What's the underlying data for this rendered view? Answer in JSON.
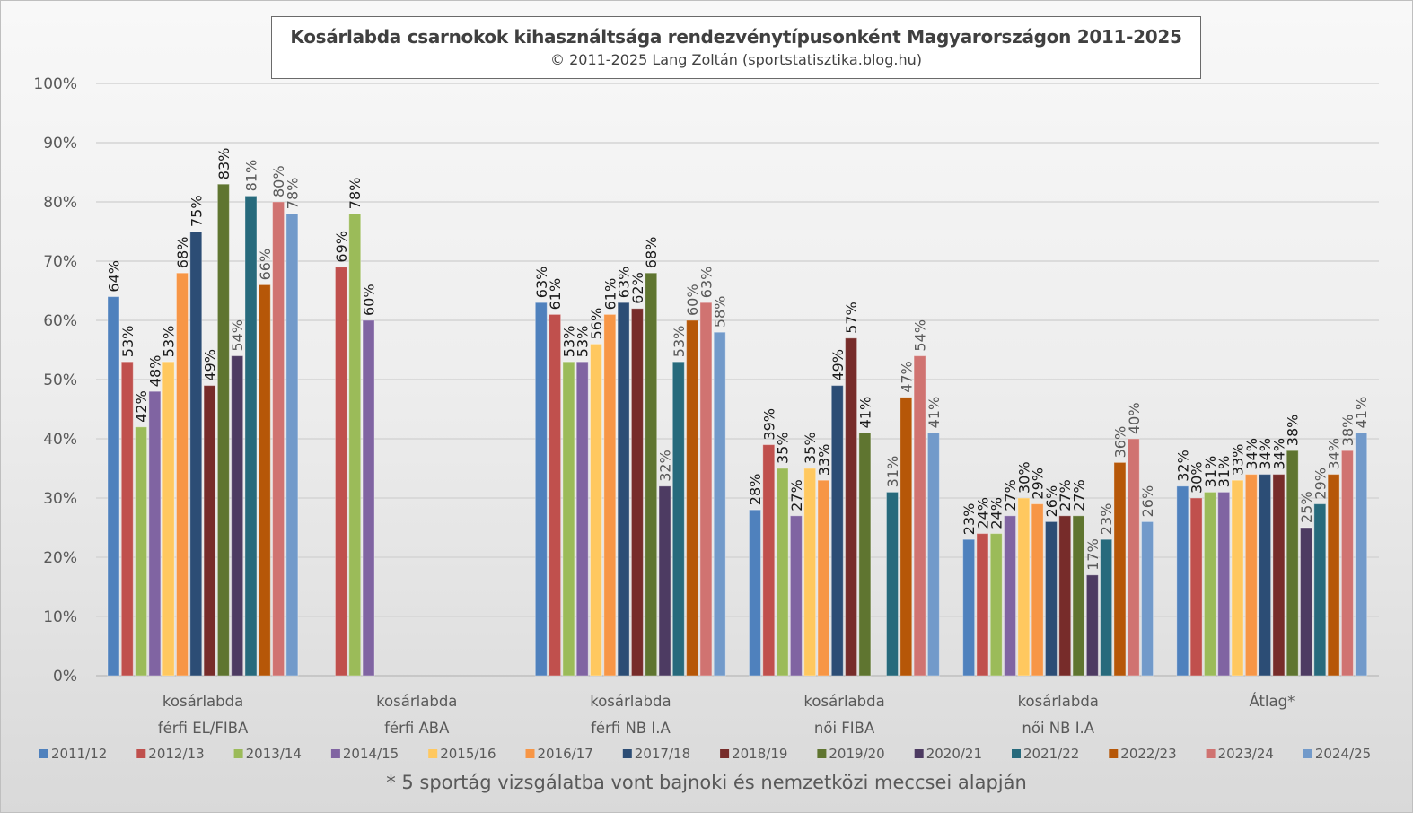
{
  "chart_data": {
    "type": "bar",
    "title": "Kosárlabda csarnokok kihasználtsága rendezvénytípusonként Magyarországon 2011-2025",
    "subtitle": "© 2011-2025 Lang Zoltán (sportstatisztika.blog.hu)",
    "footnote": "* 5 sportág vizsgálatba vont bajnoki és nemzetközi meccsei alapján",
    "xlabel": "",
    "ylabel": "",
    "ylim": [
      0,
      100
    ],
    "yticks": [
      0,
      10,
      20,
      30,
      40,
      50,
      60,
      70,
      80,
      90,
      100
    ],
    "ytick_labels": [
      "0%",
      "10%",
      "20%",
      "30%",
      "40%",
      "50%",
      "60%",
      "70%",
      "80%",
      "90%",
      "100%"
    ],
    "grid": true,
    "legend_position": "bottom",
    "value_suffix": "%",
    "categories": [
      [
        "kosárlabda",
        "férfi EL/FIBA"
      ],
      [
        "kosárlabda",
        "férfi ABA"
      ],
      [
        "kosárlabda",
        "férfi NB I.A"
      ],
      [
        "kosárlabda",
        "női FIBA"
      ],
      [
        "kosárlabda",
        "női NB I.A"
      ],
      [
        "Átlag*"
      ]
    ],
    "series": [
      {
        "name": "2011/12",
        "color": "#4F81BD",
        "values": [
          64,
          null,
          63,
          28,
          23,
          32
        ]
      },
      {
        "name": "2012/13",
        "color": "#C0504D",
        "values": [
          53,
          69,
          61,
          39,
          24,
          30
        ]
      },
      {
        "name": "2013/14",
        "color": "#9BBB59",
        "values": [
          42,
          78,
          53,
          35,
          24,
          31
        ]
      },
      {
        "name": "2014/15",
        "color": "#8064A2",
        "values": [
          48,
          60,
          53,
          27,
          27,
          31
        ]
      },
      {
        "name": "2015/16",
        "color": "#FFC85F",
        "values": [
          53,
          null,
          56,
          35,
          30,
          33
        ]
      },
      {
        "name": "2016/17",
        "color": "#F79646",
        "values": [
          68,
          null,
          61,
          33,
          29,
          34
        ]
      },
      {
        "name": "2017/18",
        "color": "#2C4D75",
        "values": [
          75,
          null,
          63,
          49,
          26,
          34
        ]
      },
      {
        "name": "2018/19",
        "color": "#772C2A",
        "values": [
          49,
          null,
          62,
          57,
          27,
          34
        ]
      },
      {
        "name": "2019/20",
        "color": "#5F7530",
        "values": [
          83,
          null,
          68,
          41,
          27,
          38
        ]
      },
      {
        "name": "2020/21",
        "color": "#4D3B62",
        "values": [
          54,
          null,
          32,
          null,
          17,
          25
        ]
      },
      {
        "name": "2021/22",
        "color": "#276A7C",
        "values": [
          81,
          null,
          53,
          31,
          23,
          29
        ]
      },
      {
        "name": "2022/23",
        "color": "#B65708",
        "values": [
          66,
          null,
          60,
          47,
          36,
          34
        ]
      },
      {
        "name": "2023/24",
        "color": "#D07371",
        "values": [
          80,
          null,
          63,
          54,
          40,
          38
        ]
      },
      {
        "name": "2024/25",
        "color": "#729ACA",
        "values": [
          78,
          null,
          58,
          41,
          26,
          41
        ]
      }
    ]
  }
}
